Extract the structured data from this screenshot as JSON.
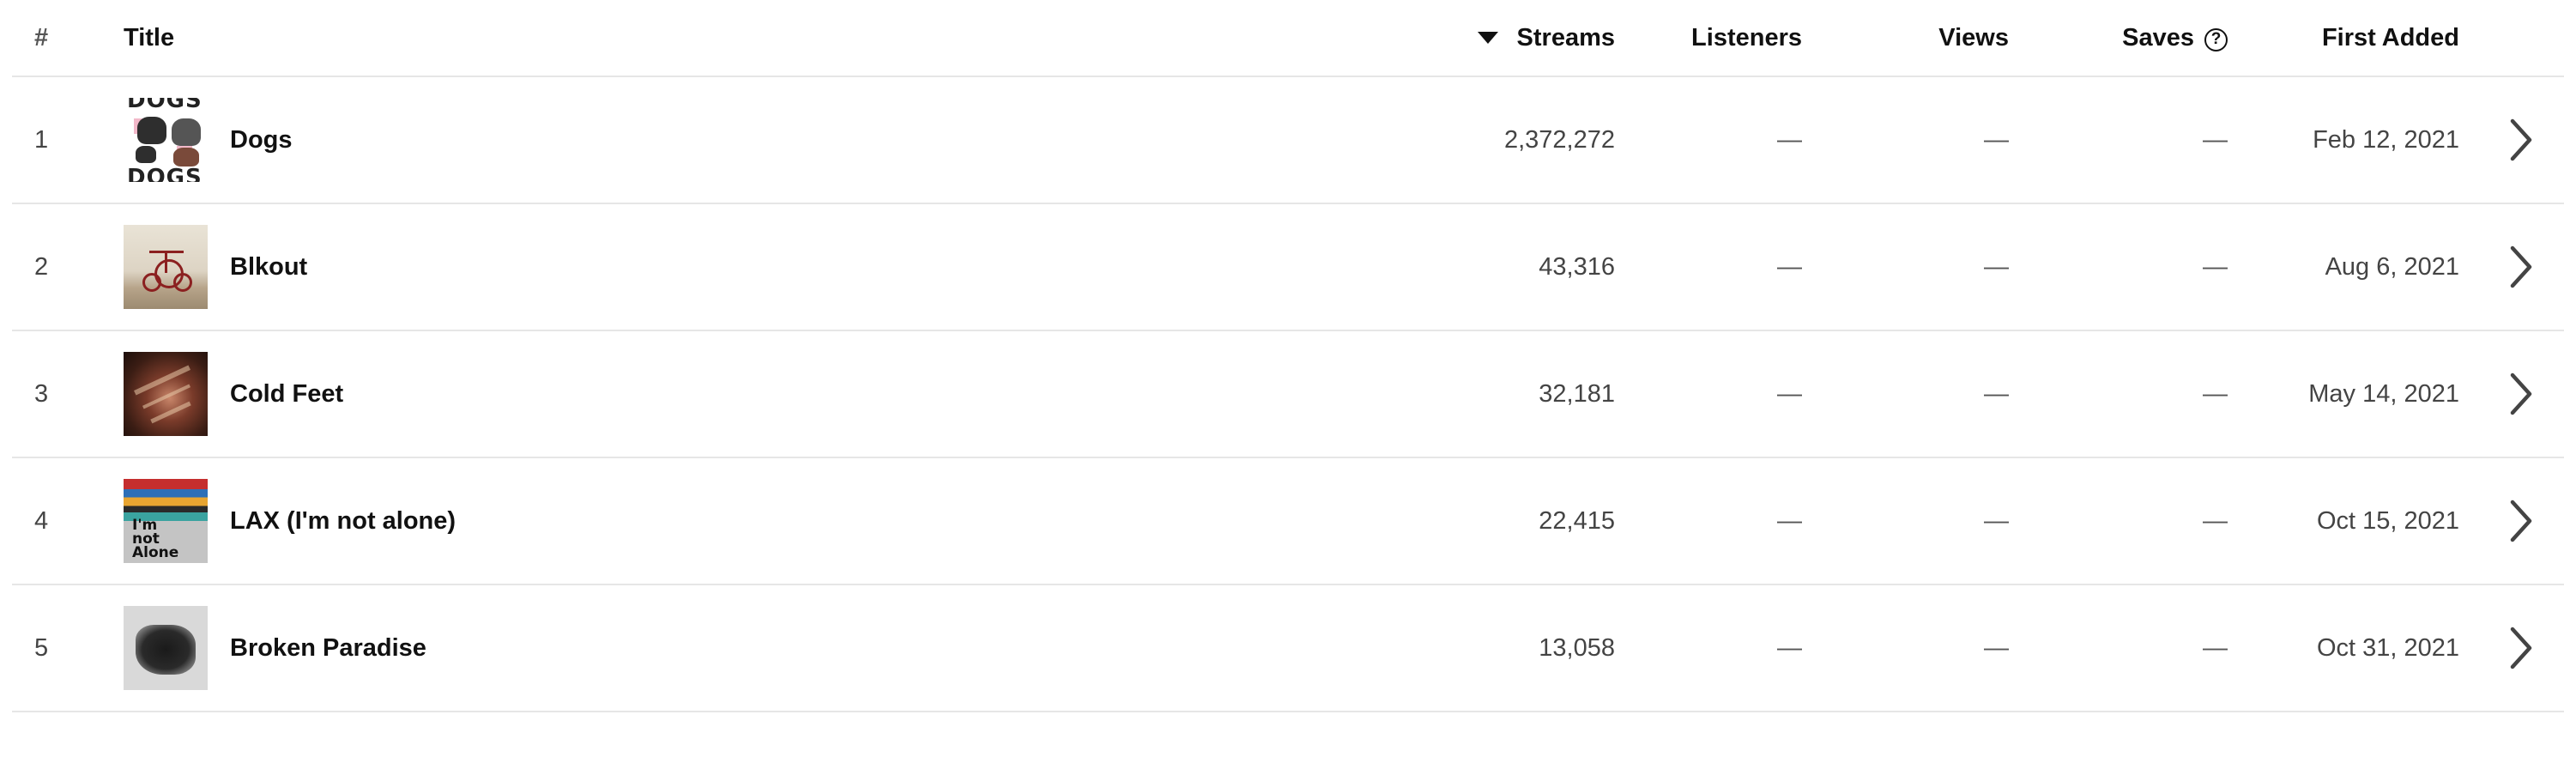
{
  "columns": {
    "number": "#",
    "title": "Title",
    "streams": "Streams",
    "listeners": "Listeners",
    "views": "Views",
    "saves": "Saves",
    "saves_help": "?",
    "first_added": "First Added"
  },
  "sort": {
    "column": "streams",
    "direction": "descending",
    "icon": "caret-down-icon"
  },
  "rows": [
    {
      "number": "1",
      "title": "Dogs",
      "streams": "2,372,272",
      "listeners": "—",
      "views": "—",
      "saves": "—",
      "first_added": "Feb 12, 2021",
      "art_text_top": "DOGS",
      "art_text_bottom": "DOGS"
    },
    {
      "number": "2",
      "title": "Blkout",
      "streams": "43,316",
      "listeners": "—",
      "views": "—",
      "saves": "—",
      "first_added": "Aug 6, 2021"
    },
    {
      "number": "3",
      "title": "Cold Feet",
      "streams": "32,181",
      "listeners": "—",
      "views": "—",
      "saves": "—",
      "first_added": "May 14, 2021"
    },
    {
      "number": "4",
      "title": "LAX (I'm not alone)",
      "streams": "22,415",
      "listeners": "—",
      "views": "—",
      "saves": "—",
      "first_added": "Oct 15, 2021",
      "art_text": "I'm\nnot\nAlone"
    },
    {
      "number": "5",
      "title": "Broken Paradise",
      "streams": "13,058",
      "listeners": "—",
      "views": "—",
      "saves": "—",
      "first_added": "Oct 31, 2021"
    }
  ],
  "icons": {
    "row_action": "chevron-right-icon",
    "saves_help": "question-circle-icon"
  },
  "colors": {
    "text_primary": "#111111",
    "text_secondary": "#444444",
    "divider": "#e6e6e6",
    "background": "#ffffff"
  }
}
